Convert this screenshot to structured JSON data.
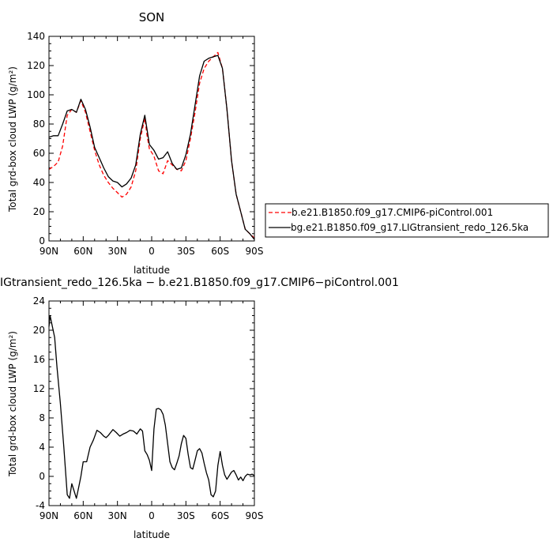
{
  "chart_data": [
    {
      "type": "line",
      "title": "SON",
      "xlabel": "latitude",
      "ylabel": "Total grd-box cloud LWP (g/m²)",
      "xlim": [
        90,
        -90
      ],
      "ylim": [
        0,
        140
      ],
      "x_ticks": [
        "90N",
        "60N",
        "30N",
        "0",
        "30S",
        "60S",
        "90S"
      ],
      "y_ticks": [
        0,
        20,
        40,
        60,
        80,
        100,
        120,
        140
      ],
      "legend_position": "right",
      "series": [
        {
          "name": "b.e21.B1850.f09_g17.CMIP6-piControl.001",
          "color": "#ff0000",
          "dash": "dashed",
          "x": [
            90,
            86,
            82,
            78,
            74,
            70,
            66,
            62,
            58,
            54,
            50,
            46,
            42,
            38,
            34,
            30,
            26,
            22,
            18,
            14,
            10,
            6,
            4,
            2,
            -2,
            -6,
            -10,
            -14,
            -18,
            -22,
            -26,
            -30,
            -34,
            -38,
            -42,
            -46,
            -50,
            -54,
            -58,
            -62,
            -66,
            -70,
            -74,
            -78,
            -82,
            -86,
            -90
          ],
          "y": [
            49,
            51,
            54,
            65,
            86,
            90,
            88,
            96,
            88,
            75,
            62,
            52,
            45,
            40,
            36,
            33,
            30,
            32,
            37,
            48,
            70,
            84,
            72,
            63,
            58,
            48,
            46,
            55,
            52,
            49,
            48,
            55,
            70,
            88,
            108,
            118,
            123,
            126,
            129,
            118,
            90,
            55,
            32,
            20,
            8,
            5,
            2
          ]
        },
        {
          "name": "bg.e21.B1850.f09_g17.LIGtransient_redo_126.5ka",
          "color": "#000000",
          "dash": "solid",
          "x": [
            90,
            86,
            82,
            78,
            74,
            70,
            66,
            62,
            58,
            54,
            50,
            46,
            42,
            38,
            34,
            30,
            26,
            22,
            18,
            14,
            10,
            6,
            4,
            2,
            -2,
            -6,
            -10,
            -14,
            -18,
            -22,
            -26,
            -30,
            -34,
            -38,
            -42,
            -46,
            -50,
            -54,
            -58,
            -62,
            -66,
            -70,
            -74,
            -78,
            -82,
            -86,
            -90
          ],
          "y": [
            71,
            72,
            72,
            80,
            89,
            90,
            88,
            97,
            90,
            78,
            64,
            57,
            50,
            44,
            41,
            40,
            37,
            39,
            43,
            52,
            73,
            86,
            76,
            66,
            62,
            56,
            57,
            61,
            53,
            49,
            50,
            59,
            73,
            93,
            113,
            123,
            125,
            126,
            127,
            118,
            90,
            55,
            32,
            20,
            8,
            5,
            1
          ]
        }
      ]
    },
    {
      "type": "line",
      "title": "IGtransient_redo_126.5ka − b.e21.B1850.f09_g17.CMIP6−piControl.001",
      "xlabel": "latitude",
      "ylabel": "Total grd-box cloud LWP (g/m²)",
      "xlim": [
        90,
        -90
      ],
      "ylim": [
        -4,
        24
      ],
      "x_ticks": [
        "90N",
        "60N",
        "30N",
        "0",
        "30S",
        "60S",
        "90S"
      ],
      "y_ticks": [
        -4,
        0,
        4,
        8,
        12,
        16,
        20,
        24
      ],
      "series": [
        {
          "color": "#000000",
          "dash": "solid",
          "x": [
            90,
            89,
            87,
            85,
            83,
            80,
            77,
            74,
            72,
            70,
            68,
            66,
            64,
            62,
            60,
            57,
            54,
            51,
            48,
            45,
            42,
            40,
            38,
            36,
            34,
            31,
            28,
            25,
            22,
            19,
            16,
            13,
            10,
            8,
            6,
            4,
            2,
            0,
            -2,
            -4,
            -6,
            -8,
            -10,
            -12,
            -14,
            -16,
            -18,
            -20,
            -22,
            -24,
            -26,
            -28,
            -30,
            -32,
            -34,
            -36,
            -38,
            -40,
            -42,
            -44,
            -46,
            -48,
            -50,
            -52,
            -54,
            -56,
            -58,
            -60,
            -62,
            -64,
            -66,
            -68,
            -70,
            -72,
            -74,
            -76,
            -78,
            -80,
            -82,
            -84,
            -86,
            -88,
            -90
          ],
          "y": [
            20.5,
            22,
            20.5,
            19,
            15,
            10,
            4,
            -2.5,
            -3,
            -1,
            -2,
            -3,
            -1.5,
            0,
            2,
            2,
            4,
            5,
            6.3,
            6,
            5.5,
            5.3,
            5.6,
            6,
            6.4,
            6,
            5.5,
            5.8,
            6,
            6.3,
            6.2,
            5.8,
            6.5,
            6.2,
            3.5,
            3,
            2.2,
            0.8,
            6.5,
            9.2,
            9.3,
            9.1,
            8.5,
            7,
            4.5,
            2,
            1.2,
            0.9,
            1.8,
            2.8,
            4.5,
            5.6,
            5.2,
            3,
            1.2,
            1.0,
            2.2,
            3.5,
            3.8,
            3.2,
            1.8,
            0.5,
            -0.5,
            -2.5,
            -2.8,
            -2,
            1.5,
            3.4,
            1.5,
            0.2,
            -0.4,
            0.1,
            0.6,
            0.8,
            0.2,
            -0.5,
            -0.1,
            -0.6,
            0,
            0.3,
            0.2,
            0.3,
            0.1
          ]
        }
      ]
    }
  ]
}
